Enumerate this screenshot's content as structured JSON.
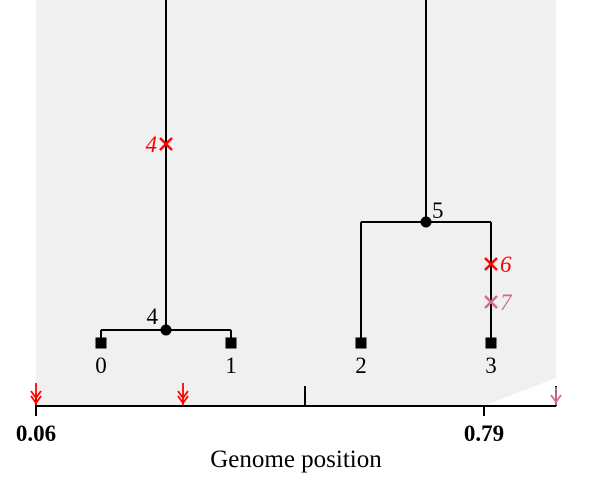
{
  "colors": {
    "background": "#ffffff",
    "plot_bg": "#f0f0f0",
    "line": "#000000",
    "mutation_primary": "#ff0000",
    "mutation_secondary": "#d46a8c"
  },
  "tree": {
    "nodes": {
      "leaf_0": "0",
      "leaf_1": "1",
      "leaf_2": "2",
      "leaf_3": "3",
      "internal_4": "4",
      "internal_5": "5"
    },
    "mutations": {
      "m4": "4",
      "m6": "6",
      "m7": "7"
    }
  },
  "axis": {
    "title": "Genome position",
    "tick_left": "0.06",
    "tick_right": "0.79"
  }
}
